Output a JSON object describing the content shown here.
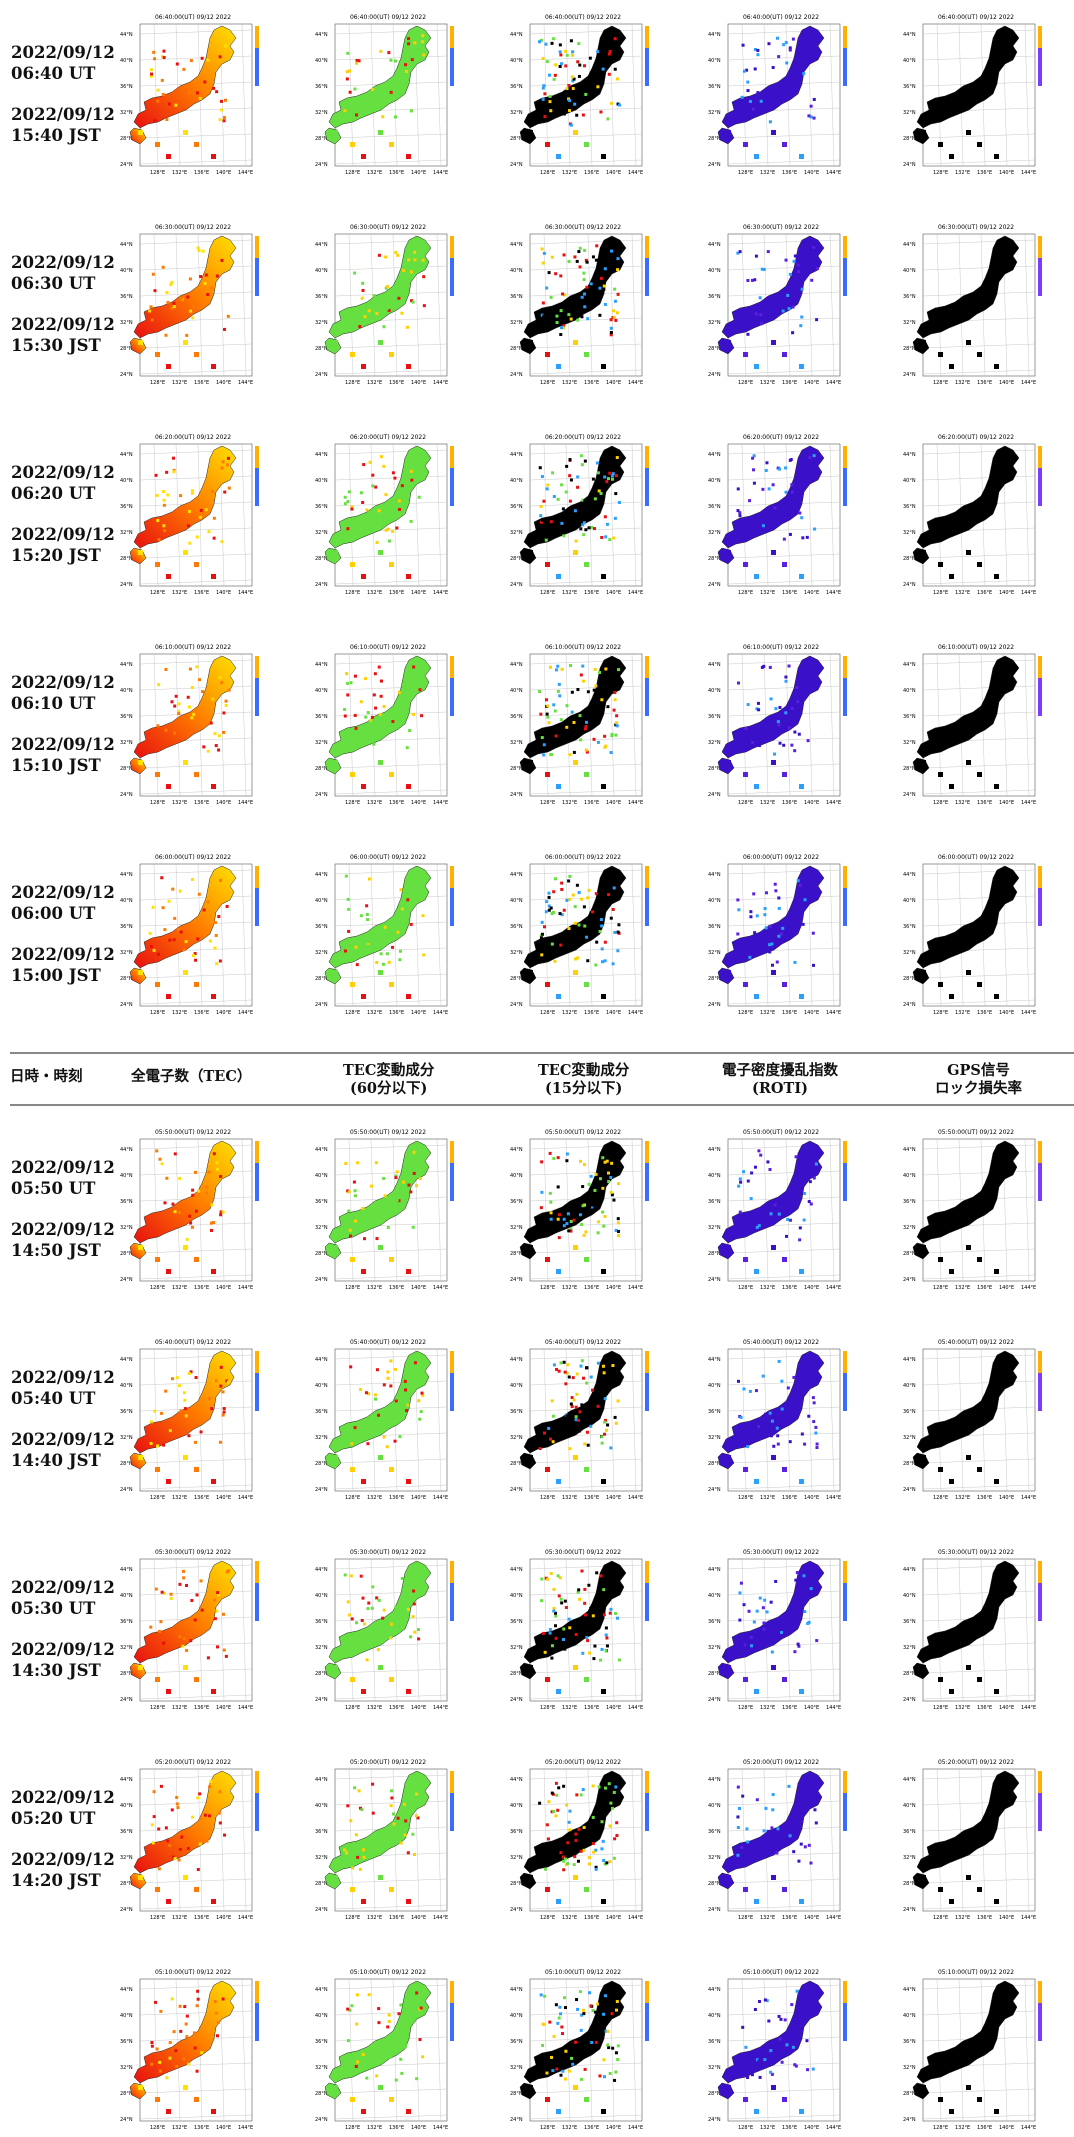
{
  "header": {
    "col0": "日時・時刻",
    "col1": "全電子数（TEC）",
    "col2": [
      "TEC変動成分",
      "(60分以下)"
    ],
    "col3": [
      "TEC変動成分",
      "(15分以下)"
    ],
    "col4": [
      "電子密度擾乱指数",
      "(ROTI)"
    ],
    "col5": [
      "GPS信号",
      "ロック損失率"
    ]
  },
  "rows_top": [
    {
      "ut": "2022/09/12\n06:40 UT",
      "ut_date": "2022/09/12",
      "ut_time": "06:40 UT",
      "jst_date": "2022/09/12",
      "jst_time": "15:40 JST",
      "map_title": "06:40:00(UT) 09/12 2022"
    },
    {
      "ut_date": "2022/09/12",
      "ut_time": "06:30 UT",
      "jst_date": "2022/09/12",
      "jst_time": "15:30 JST",
      "map_title": "06:30:00(UT) 09/12 2022"
    },
    {
      "ut_date": "2022/09/12",
      "ut_time": "06:20 UT",
      "jst_date": "2022/09/12",
      "jst_time": "15:20 JST",
      "map_title": "06:20:00(UT) 09/12 2022"
    },
    {
      "ut_date": "2022/09/12",
      "ut_time": "06:10 UT",
      "jst_date": "2022/09/12",
      "jst_time": "15:10 JST",
      "map_title": "06:10:00(UT) 09/12 2022"
    },
    {
      "ut_date": "2022/09/12",
      "ut_time": "06:00 UT",
      "jst_date": "2022/09/12",
      "jst_time": "15:00 JST",
      "map_title": "06:00:00(UT) 09/12 2022"
    }
  ],
  "rows_bottom": [
    {
      "ut_date": "2022/09/12",
      "ut_time": "05:50 UT",
      "jst_date": "2022/09/12",
      "jst_time": "14:50 JST",
      "map_title": "05:50:00(UT) 09/12 2022"
    },
    {
      "ut_date": "2022/09/12",
      "ut_time": "05:40 UT",
      "jst_date": "2022/09/12",
      "jst_time": "14:40 JST",
      "map_title": "05:40:00(UT) 09/12 2022"
    },
    {
      "ut_date": "2022/09/12",
      "ut_time": "05:30 UT",
      "jst_date": "2022/09/12",
      "jst_time": "14:30 JST",
      "map_title": "05:30:00(UT) 09/12 2022"
    },
    {
      "ut_date": "2022/09/12",
      "ut_time": "05:20 UT",
      "jst_date": "2022/09/12",
      "jst_time": "14:20 JST",
      "map_title": "05:20:00(UT) 09/12 2022"
    },
    {
      "map_title": "05:10:00(UT) 09/12 2022"
    }
  ],
  "map_axes": {
    "lat_ticks": [
      "44°N",
      "40°N",
      "36°N",
      "32°N",
      "28°N",
      "24°N"
    ],
    "lon_ticks": [
      "128°E",
      "132°E",
      "136°E",
      "140°E",
      "144°E"
    ]
  },
  "map_colors": {
    "tec": [
      "#ffe000",
      "#ff7a00",
      "#e81010"
    ],
    "tec60": [
      "#66e040",
      "#ffd000",
      "#e81010"
    ],
    "tec15": [
      "#000000",
      "#e81010",
      "#2aa0ff",
      "#ffd000",
      "#66e040"
    ],
    "roti": [
      "#3a10c8",
      "#5a20e0",
      "#2aa0ff"
    ],
    "lol": [
      "#000000"
    ]
  }
}
